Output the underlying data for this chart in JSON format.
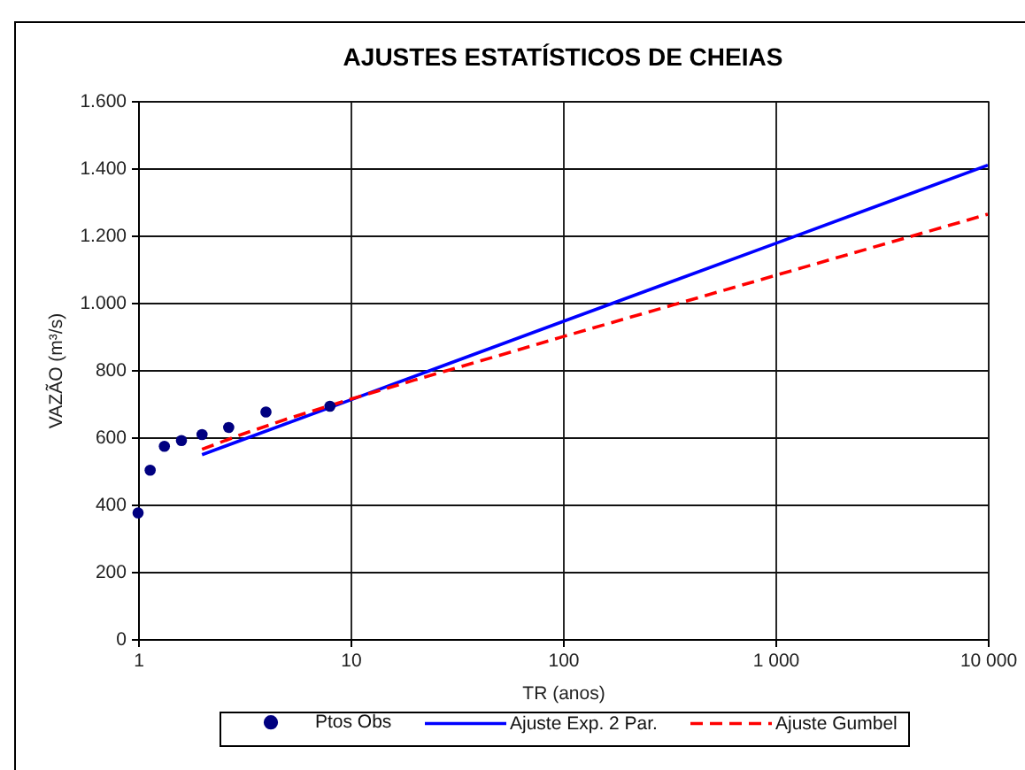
{
  "chart_data": {
    "type": "line",
    "title": "AJUSTES ESTATÍSTICOS DE CHEIAS",
    "xlabel": "TR (anos)",
    "ylabel": "VAZÃO (m³/s)",
    "log": "x",
    "xlim": [
      1,
      10000
    ],
    "xticks": [
      1,
      10,
      100,
      {
        "value": 1000,
        "label": "1 000"
      },
      {
        "value": 10000,
        "label": "10 000"
      }
    ],
    "ylim": [
      0,
      1600
    ],
    "yticks": [
      0,
      200,
      400,
      600,
      800,
      {
        "value": 1000,
        "label": "1.000"
      },
      {
        "value": 1200,
        "label": "1.200"
      },
      {
        "value": 1400,
        "label": "1.400"
      },
      {
        "value": 1600,
        "label": "1.600"
      }
    ],
    "grid": true,
    "legend": "bottom",
    "series": [
      {
        "name": "Ptos Obs",
        "type": "scatter",
        "marker": "circle",
        "color": "#000080",
        "x": [
          1,
          1.14,
          1.33,
          1.6,
          2,
          2.67,
          4,
          8
        ],
        "values": [
          375,
          502,
          573,
          590,
          608,
          629,
          675,
          692
        ]
      },
      {
        "name": "Ajuste Exp. 2 Par.",
        "type": "line",
        "line_style": "solid",
        "color": "#0000ff",
        "x": [
          2,
          10,
          100,
          1000,
          10000
        ],
        "values": [
          548,
          711,
          944,
          1176,
          1409
        ]
      },
      {
        "name": "Ajuste Gumbel",
        "type": "line",
        "line_style": "dashed",
        "color": "#ff0000",
        "x": [
          2,
          3,
          5,
          10,
          20,
          50,
          100,
          1000,
          10000
        ],
        "values": [
          564,
          606,
          654,
          713,
          770,
          843,
          899,
          1081,
          1263
        ]
      }
    ]
  }
}
